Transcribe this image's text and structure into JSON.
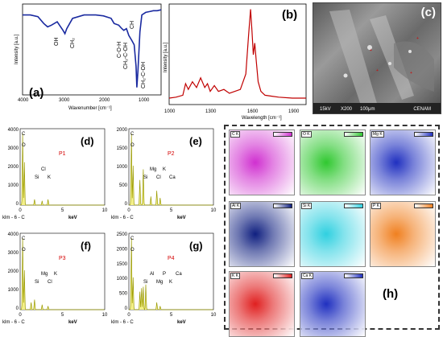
{
  "chart_data": [
    {
      "panel": "(a)",
      "type": "line",
      "xlabel": "Wavenumber [cm⁻¹]",
      "ylabel": "Intensity [a.u.]",
      "xticks": [
        4000,
        3000,
        2000,
        1000
      ],
      "xlim": [
        4000,
        400
      ],
      "annotations": [
        "OH",
        "CH₂",
        "C-O-H",
        "CH₂-C-OH",
        "CH",
        "CH₂-C-OH"
      ],
      "color": "#1a2aa0",
      "x": [
        4000,
        3800,
        3600,
        3450,
        3350,
        3250,
        3100,
        2950,
        2900,
        2850,
        2700,
        2400,
        2100,
        1900,
        1700,
        1620,
        1500,
        1420,
        1370,
        1300,
        1240,
        1160,
        1100,
        1050,
        1030,
        1000,
        950,
        900,
        800,
        700,
        600,
        500,
        400
      ],
      "y": [
        0.9,
        0.9,
        0.88,
        0.8,
        0.76,
        0.78,
        0.82,
        0.72,
        0.68,
        0.74,
        0.86,
        0.9,
        0.9,
        0.89,
        0.86,
        0.8,
        0.78,
        0.74,
        0.72,
        0.74,
        0.66,
        0.6,
        0.55,
        0.3,
        0.05,
        0.25,
        0.7,
        0.9,
        0.93,
        0.94,
        0.95,
        0.95,
        0.96
      ]
    },
    {
      "panel": "(b)",
      "type": "line",
      "xlabel": "Wavelength [cm⁻¹]",
      "ylabel": "Intensity [a.u.]",
      "xticks": [
        1000,
        1300,
        1600,
        1900
      ],
      "xlim": [
        1000,
        2000
      ],
      "color": "#c00000",
      "x": [
        1000,
        1050,
        1100,
        1120,
        1140,
        1170,
        1200,
        1230,
        1260,
        1280,
        1300,
        1330,
        1360,
        1400,
        1440,
        1480,
        1520,
        1560,
        1580,
        1595,
        1605,
        1615,
        1625,
        1635,
        1650,
        1670,
        1700,
        1750,
        1800,
        1900,
        2000
      ],
      "y": [
        0.05,
        0.06,
        0.08,
        0.2,
        0.14,
        0.22,
        0.16,
        0.26,
        0.16,
        0.2,
        0.12,
        0.18,
        0.12,
        0.14,
        0.1,
        0.12,
        0.14,
        0.3,
        0.7,
        0.97,
        0.75,
        0.5,
        0.62,
        0.45,
        0.22,
        0.12,
        0.08,
        0.07,
        0.06,
        0.05,
        0.05
      ]
    }
  ],
  "panel_a": {
    "letter": "(a)",
    "ylabel": "Intensity [a.u.]",
    "xlabel": "Wavenumber [cm⁻¹]",
    "ticks": [
      "4000",
      "3000",
      "2000",
      "1000"
    ],
    "labels": [
      "OH",
      "CH₂",
      "C-O-H",
      "CH₂-C-OH",
      "CH",
      "CH₂-C-OH"
    ]
  },
  "panel_b": {
    "letter": "(b)",
    "ylabel": "Intensity [a.u.]",
    "xlabel": "Wavelength [cm⁻¹]",
    "ticks": [
      "1000",
      "1300",
      "1600",
      "1900"
    ]
  },
  "panel_c": {
    "letter": "(c)",
    "footer": [
      "15kV",
      "X200",
      "100μm",
      "CENAM"
    ]
  },
  "eds": [
    {
      "letter": "(d)",
      "point": "P1",
      "ylabel_ticks": [
        "4000",
        "3000",
        "2000",
        "1000",
        "0"
      ],
      "footer": "klm - 6 - C",
      "xunit": "keV",
      "xticks": [
        "0",
        "5",
        "10"
      ],
      "elements": [
        "C",
        "O",
        "Si",
        "Cl",
        "K"
      ]
    },
    {
      "letter": "(e)",
      "point": "P2",
      "ylabel_ticks": [
        "2000",
        "1500",
        "1000",
        "500",
        "0"
      ],
      "footer": "klm - 6 - C",
      "xunit": "keV",
      "xticks": [
        "0",
        "5",
        "10"
      ],
      "elements": [
        "C",
        "O",
        "Si",
        "Mg",
        "Cl",
        "K",
        "Ca"
      ]
    },
    {
      "letter": "(f)",
      "point": "P3",
      "ylabel_ticks": [
        "4000",
        "3000",
        "2000",
        "1000",
        "0"
      ],
      "footer": "klm - 6 - C",
      "xunit": "keV",
      "xticks": [
        "0",
        "5",
        "10"
      ],
      "elements": [
        "C",
        "O",
        "Si",
        "Mg",
        "Cl",
        "K"
      ]
    },
    {
      "letter": "(g)",
      "point": "P4",
      "ylabel_ticks": [
        "2500",
        "2000",
        "1500",
        "1000",
        "500",
        "0"
      ],
      "footer": "klm - 6 - C",
      "xunit": "keV",
      "xticks": [
        "0",
        "5",
        "10"
      ],
      "elements": [
        "C",
        "O",
        "Si",
        "Al",
        "Mg",
        "P",
        "K",
        "Ca"
      ]
    }
  ],
  "maps": {
    "letter": "(h)",
    "items": [
      {
        "label": "C K",
        "color": "#d030d0"
      },
      {
        "label": "O K",
        "color": "#30c830"
      },
      {
        "label": "Mg K",
        "color": "#2030c0"
      },
      {
        "label": "Al K",
        "color": "#102080"
      },
      {
        "label": "Si K",
        "color": "#30d0e0"
      },
      {
        "label": "P K",
        "color": "#f08020"
      },
      {
        "label": "K K",
        "color": "#e02020"
      },
      {
        "label": "Ca K",
        "color": "#2030c0"
      }
    ]
  }
}
